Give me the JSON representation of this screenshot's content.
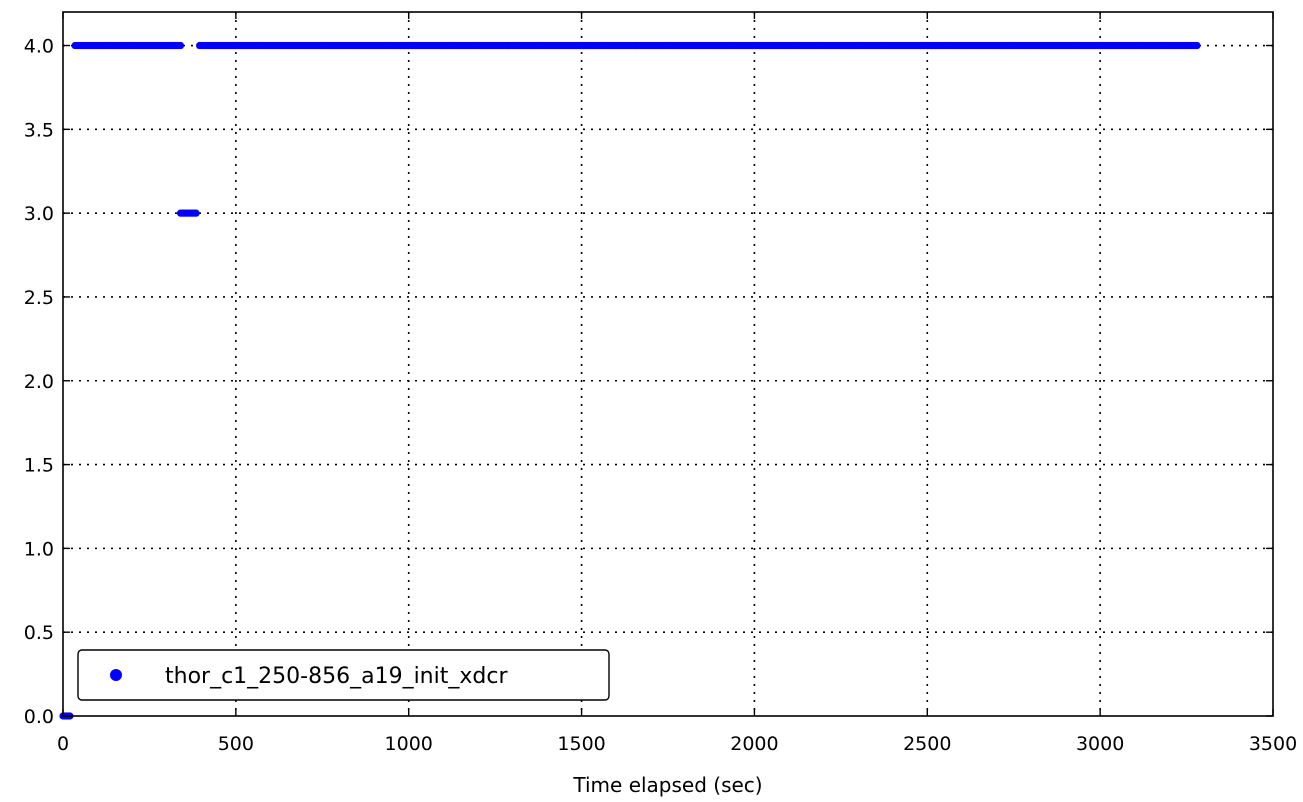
{
  "chart_data": {
    "type": "scatter",
    "title": "",
    "xlabel": "Time elapsed (sec)",
    "ylabel": "",
    "xlim": [
      0,
      3500
    ],
    "ylim": [
      0,
      4.2
    ],
    "x_ticks": [
      0,
      500,
      1000,
      1500,
      2000,
      2500,
      3000,
      3500
    ],
    "x_tick_labels": [
      "0",
      "500",
      "1000",
      "1500",
      "2000",
      "2500",
      "3000",
      "3500"
    ],
    "y_ticks": [
      0.0,
      0.5,
      1.0,
      1.5,
      2.0,
      2.5,
      3.0,
      3.5,
      4.0
    ],
    "y_tick_labels": [
      "0.0",
      "0.5",
      "1.0",
      "1.5",
      "2.0",
      "2.5",
      "3.0",
      "3.5",
      "4.0"
    ],
    "grid": true,
    "legend_position": "lower-left",
    "series": [
      {
        "name": "thor_c1_250-856_a19_init_xdcr",
        "color": "#0000ff",
        "marker": "circle",
        "segments": [
          {
            "x_start": 0,
            "x_end": 20,
            "y": 0
          },
          {
            "x_start": 35,
            "x_end": 340,
            "y": 4
          },
          {
            "x_start": 340,
            "x_end": 385,
            "y": 3
          },
          {
            "x_start": 395,
            "x_end": 3280,
            "y": 4
          }
        ],
        "sample_interval": 5
      }
    ]
  }
}
